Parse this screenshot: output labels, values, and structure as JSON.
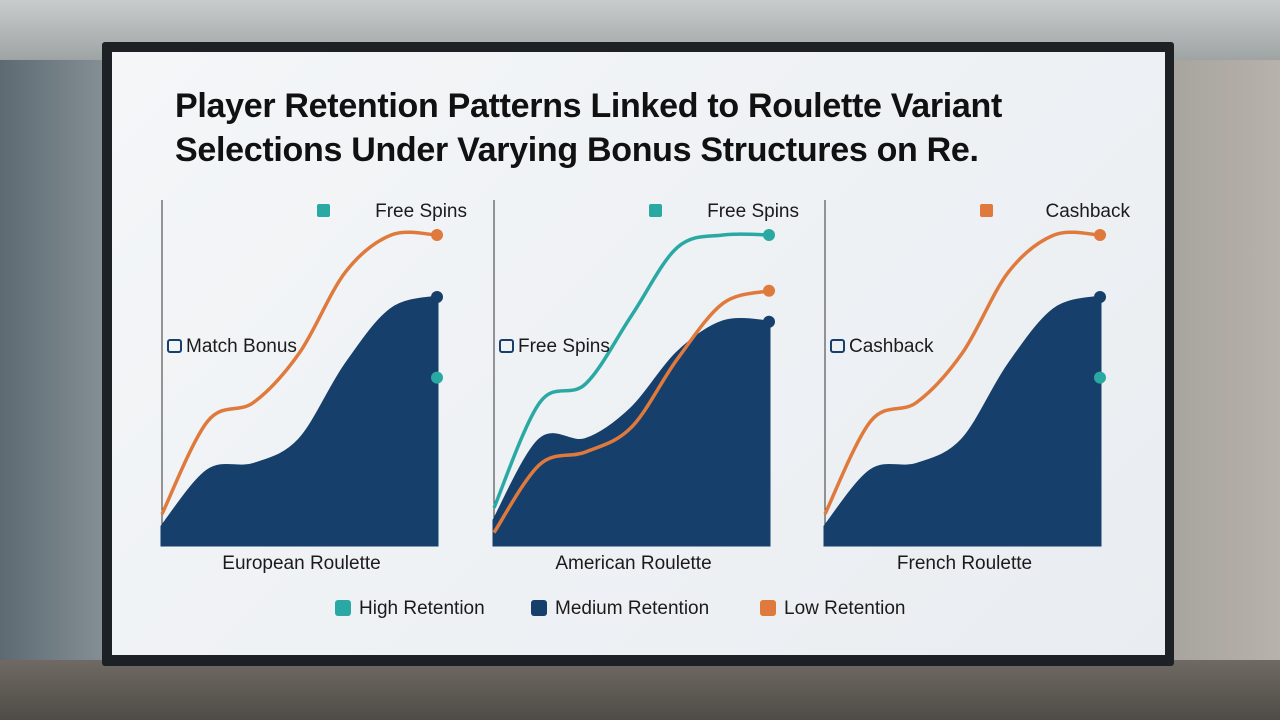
{
  "title": "Player Retention Patterns Linked to Roulette Variant Selections Under Varying Bonus Structures on Re.",
  "chart_data": [
    {
      "type": "area",
      "title": "European Roulette",
      "ylim": [
        0,
        100
      ],
      "annotations": [
        "Free Spins",
        "Match Bonus"
      ],
      "series": [
        {
          "name": "High Retention",
          "color": "#2aa9a4",
          "style": "area",
          "values": [
            2,
            14,
            16,
            17,
            30,
            50,
            54
          ]
        },
        {
          "name": "Medium Retention",
          "color": "#163f6b",
          "style": "area",
          "values": [
            6,
            24,
            26,
            34,
            58,
            76,
            80
          ]
        },
        {
          "name": "Low Retention",
          "color": "#e07a3c",
          "style": "line",
          "values": [
            10,
            40,
            46,
            62,
            88,
            100,
            100
          ]
        }
      ]
    },
    {
      "type": "area",
      "title": "American Roulette",
      "ylim": [
        0,
        100
      ],
      "annotations": [
        "Free Spins",
        "Free Spins"
      ],
      "series": [
        {
          "name": "High Retention",
          "color": "#2aa9a4",
          "style": "line",
          "values": [
            12,
            46,
            52,
            74,
            96,
            100,
            100
          ]
        },
        {
          "name": "Medium Retention",
          "color": "#163f6b",
          "style": "area",
          "values": [
            8,
            34,
            34,
            44,
            62,
            72,
            72
          ]
        },
        {
          "name": "Low Retention",
          "color": "#e07a3c",
          "style": "line",
          "values": [
            4,
            26,
            30,
            38,
            60,
            78,
            82
          ]
        }
      ]
    },
    {
      "type": "area",
      "title": "French Roulette",
      "ylim": [
        0,
        100
      ],
      "annotations": [
        "Cashback",
        "Cashback"
      ],
      "series": [
        {
          "name": "High Retention",
          "color": "#2aa9a4",
          "style": "area",
          "values": [
            2,
            14,
            16,
            17,
            30,
            50,
            54
          ]
        },
        {
          "name": "Medium Retention",
          "color": "#163f6b",
          "style": "area",
          "values": [
            6,
            24,
            26,
            34,
            58,
            76,
            80
          ]
        },
        {
          "name": "Low Retention",
          "color": "#e07a3c",
          "style": "line",
          "values": [
            10,
            40,
            46,
            62,
            88,
            100,
            100
          ]
        }
      ]
    }
  ]
}
